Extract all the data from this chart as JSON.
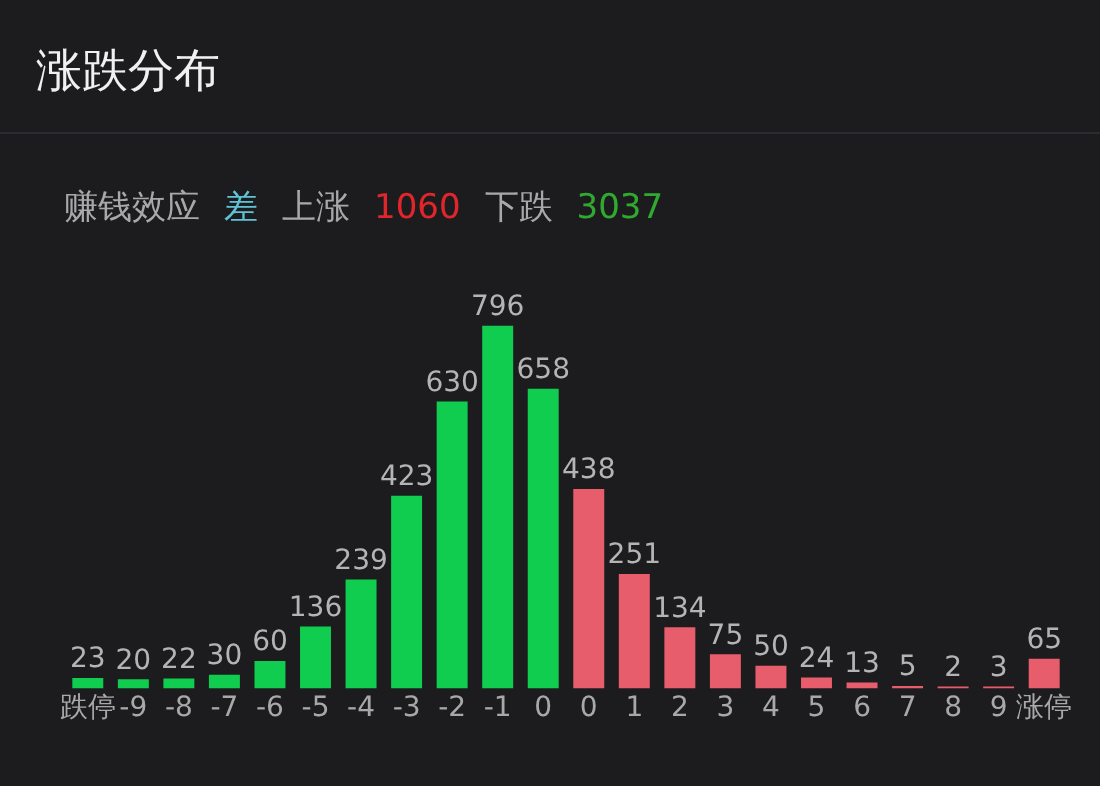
{
  "chart_data": {
    "type": "bar",
    "title": "涨跌分布",
    "annotations": [
      "赚钱效应",
      "差",
      "上涨",
      "1060",
      "下跌",
      "3037"
    ],
    "categories": [
      "跌停",
      "-9",
      "-8",
      "-7",
      "-6",
      "-5",
      "-4",
      "-3",
      "-2",
      "-1",
      "0",
      "0",
      "1",
      "2",
      "3",
      "4",
      "5",
      "6",
      "7",
      "8",
      "9",
      "涨停"
    ],
    "values": [
      23,
      20,
      22,
      30,
      60,
      136,
      239,
      423,
      630,
      796,
      658,
      438,
      251,
      134,
      75,
      50,
      24,
      13,
      5,
      2,
      3,
      65
    ],
    "colors": [
      "#10cc4f",
      "#10cc4f",
      "#10cc4f",
      "#10cc4f",
      "#10cc4f",
      "#10cc4f",
      "#10cc4f",
      "#10cc4f",
      "#10cc4f",
      "#10cc4f",
      "#10cc4f",
      "#e85d6c",
      "#e85d6c",
      "#e85d6c",
      "#e85d6c",
      "#e85d6c",
      "#e85d6c",
      "#e85d6c",
      "#e85d6c",
      "#e85d6c",
      "#e85d6c",
      "#e85d6c"
    ],
    "data_labels": true,
    "tick_labels": "x"
  }
}
